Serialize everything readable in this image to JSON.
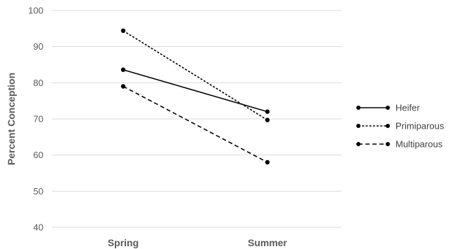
{
  "chart_data": {
    "type": "line",
    "categories": [
      "Spring",
      "Summer"
    ],
    "ylabel": "Percent Conception",
    "xlabel": "",
    "ylim": [
      40,
      100
    ],
    "yticks": [
      40,
      50,
      60,
      70,
      80,
      90,
      100
    ],
    "grid": true,
    "legend": "right",
    "series": [
      {
        "name": "Heifer",
        "values": [
          83.6,
          72.0
        ],
        "dash": "solid",
        "color": "#000000"
      },
      {
        "name": "Primiparous",
        "values": [
          94.4,
          69.7
        ],
        "dash": "dotted",
        "color": "#000000"
      },
      {
        "name": "Multiparous",
        "values": [
          79.0,
          58.0
        ],
        "dash": "dashed",
        "color": "#000000"
      }
    ]
  }
}
